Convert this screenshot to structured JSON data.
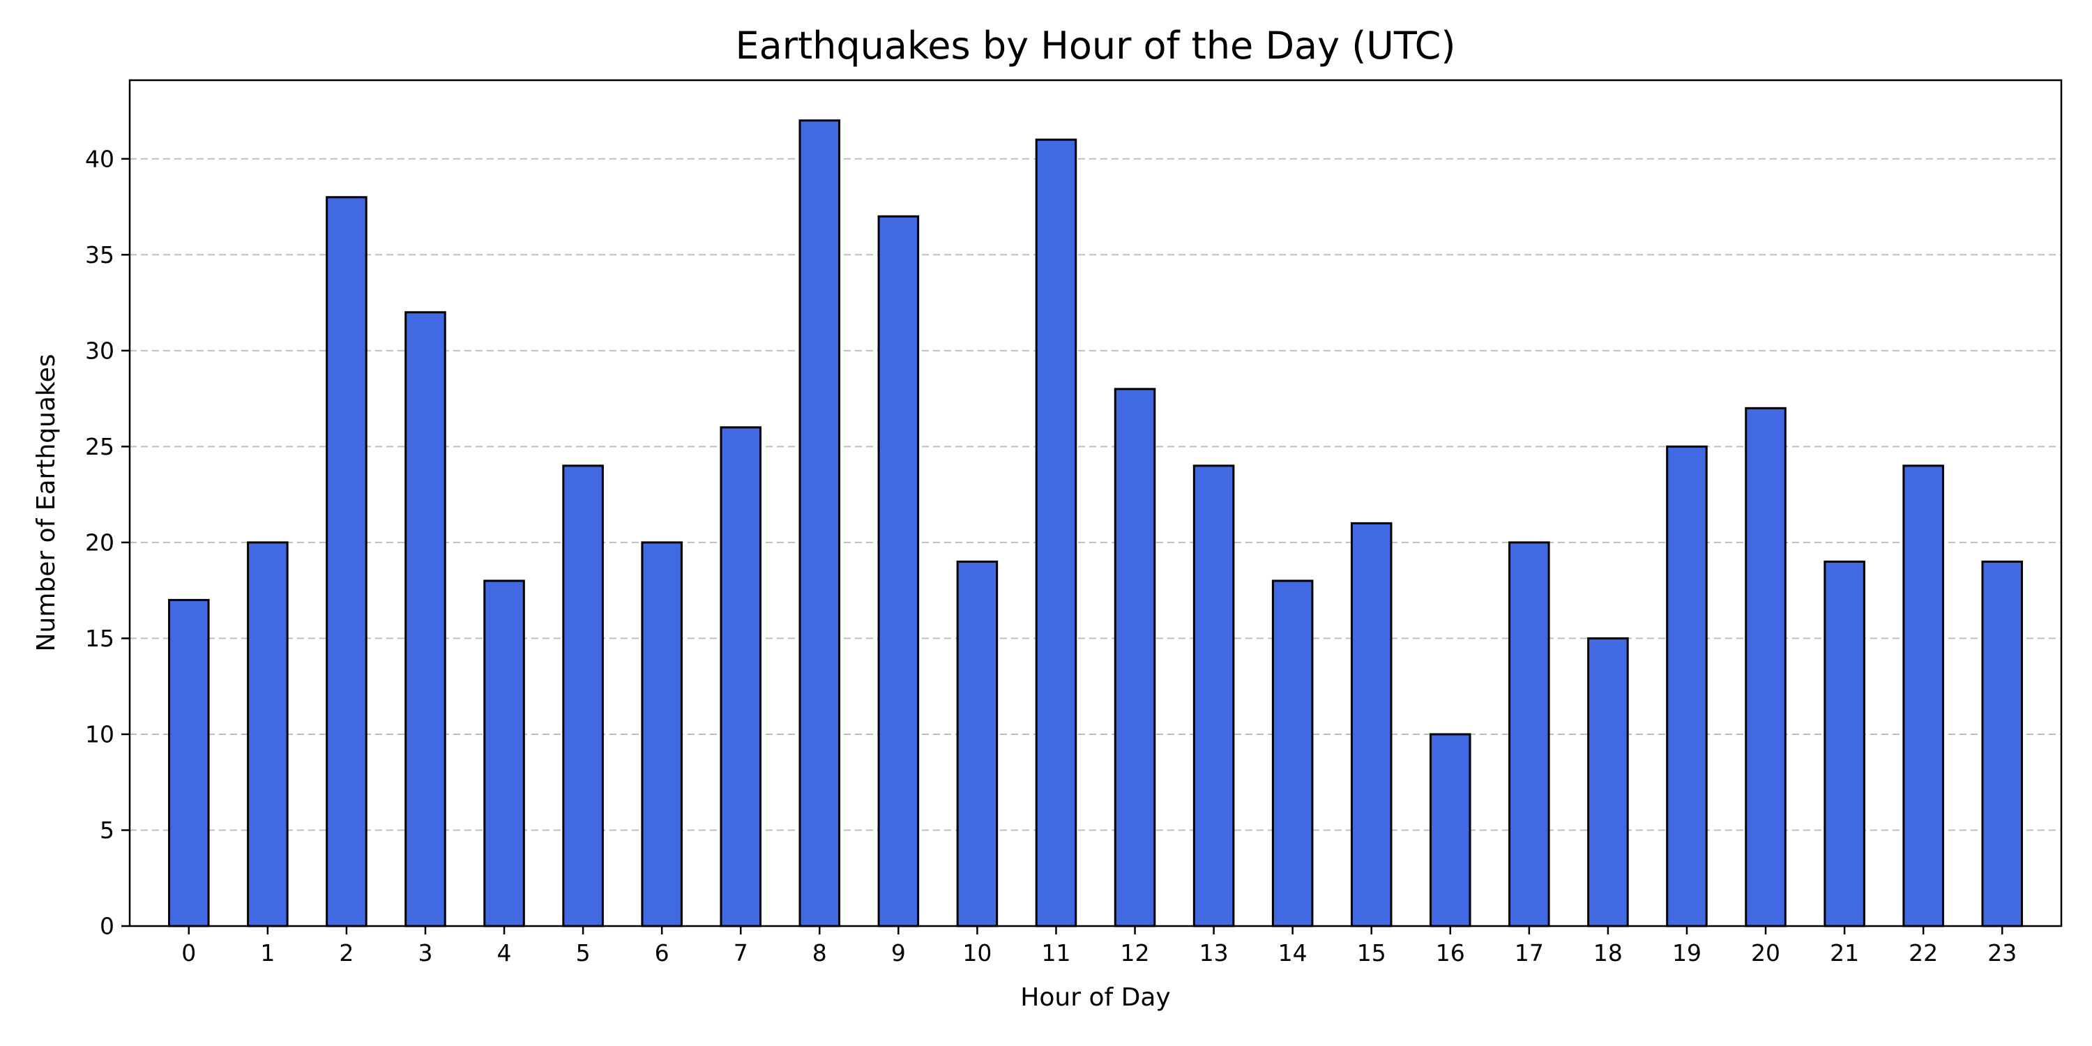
{
  "chart_data": {
    "type": "bar",
    "title": "Earthquakes by Hour of the Day (UTC)",
    "xlabel": "Hour of Day",
    "ylabel": "Number of Earthquakes",
    "categories": [
      "0",
      "1",
      "2",
      "3",
      "4",
      "5",
      "6",
      "7",
      "8",
      "9",
      "10",
      "11",
      "12",
      "13",
      "14",
      "15",
      "16",
      "17",
      "18",
      "19",
      "20",
      "21",
      "22",
      "23"
    ],
    "values": [
      17,
      20,
      38,
      32,
      18,
      24,
      20,
      26,
      42,
      37,
      19,
      41,
      28,
      24,
      18,
      21,
      10,
      20,
      15,
      25,
      27,
      19,
      24,
      19
    ],
    "ylim": [
      0,
      44.1
    ],
    "yticks": [
      0,
      5,
      10,
      15,
      20,
      25,
      30,
      35,
      40
    ],
    "grid": "y, dashed",
    "legend": "none"
  },
  "colors": {
    "bar_fill": "#4169E1",
    "bar_edge": "#000000",
    "grid": "#bfbfbf",
    "axes": "#000000"
  }
}
